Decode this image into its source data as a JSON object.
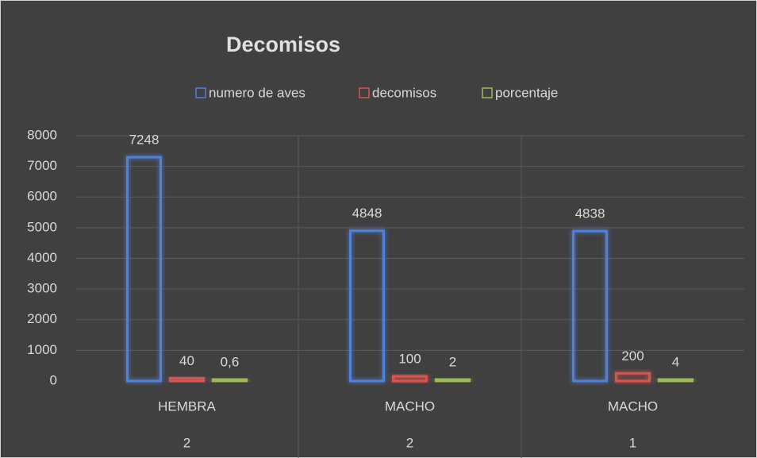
{
  "chart_data": {
    "type": "bar",
    "title": "Decomisos",
    "categories": [
      "HEMBRA",
      "MACHO",
      "MACHO"
    ],
    "category_groups": [
      "2",
      "2",
      "1"
    ],
    "series": [
      {
        "name": "numero de aves",
        "color": "#4f81d8",
        "values": [
          7248,
          4848,
          4838
        ]
      },
      {
        "name": "decomisos",
        "color": "#d9534f",
        "values": [
          40,
          100,
          200
        ]
      },
      {
        "name": "porcentaje",
        "color": "#9bbb59",
        "values": [
          0.6,
          2,
          4
        ],
        "value_labels": [
          "0,6",
          "2",
          "4"
        ]
      }
    ],
    "ylim": [
      0,
      8000
    ],
    "yticks": [
      0,
      1000,
      2000,
      3000,
      4000,
      5000,
      6000,
      7000,
      8000
    ],
    "grid": true,
    "legend": "top"
  }
}
